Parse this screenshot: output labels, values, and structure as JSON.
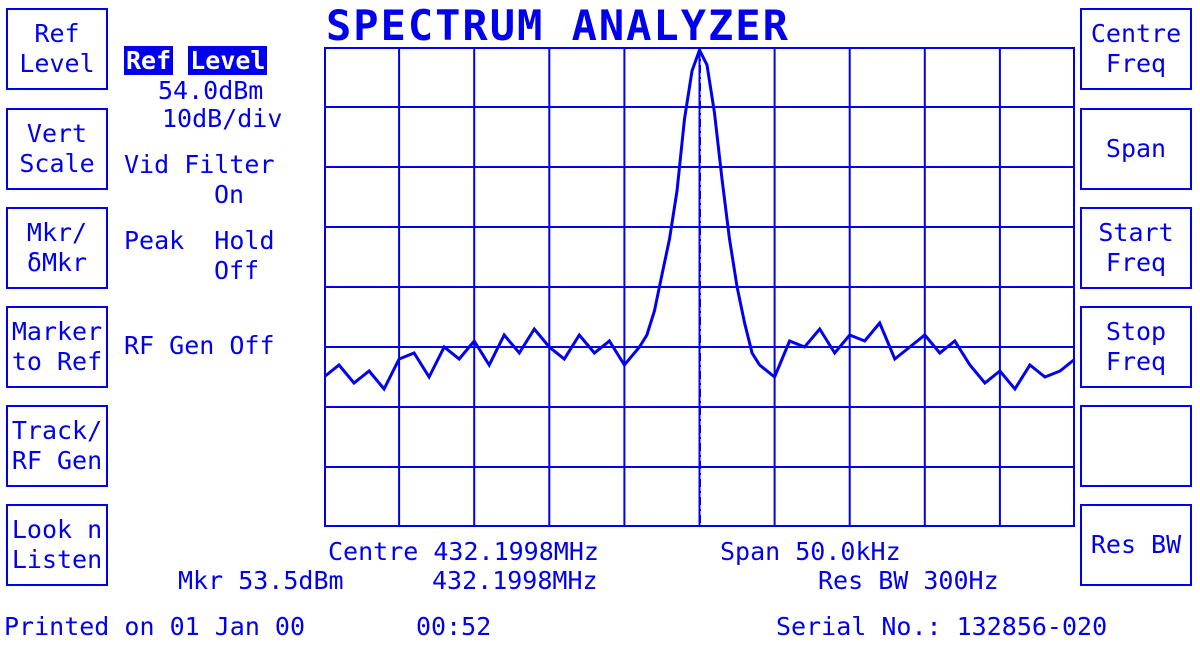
{
  "title": "SPECTRUM ANALYZER",
  "left_softkeys": [
    {
      "line1": "Ref",
      "line2": "Level"
    },
    {
      "line1": "Vert",
      "line2": "Scale"
    },
    {
      "line1": "Mkr/",
      "line2": "δMkr"
    },
    {
      "line1": "Marker",
      "line2": "to Ref"
    },
    {
      "line1": "Track/",
      "line2": "RF Gen"
    },
    {
      "line1": "Look n",
      "line2": "Listen"
    }
  ],
  "right_softkeys": [
    {
      "line1": "Centre",
      "line2": "Freq"
    },
    {
      "line1": "Span",
      "line2": ""
    },
    {
      "line1": "Start",
      "line2": "Freq"
    },
    {
      "line1": "Stop",
      "line2": "Freq"
    },
    {
      "line1": "",
      "line2": ""
    },
    {
      "line1": "Res BW",
      "line2": ""
    }
  ],
  "status": {
    "ref_label_1": "Ref",
    "ref_label_2": "Level",
    "ref_value": "54.0dBm",
    "vert_scale": "10dB/div",
    "vid_filter_label": "Vid Filter",
    "vid_filter_value": "On",
    "peak_hold_label": "Peak  Hold",
    "peak_hold_value": "Off",
    "rf_gen": "RF Gen Off"
  },
  "bottom": {
    "centre": "Centre 432.1998MHz",
    "span": "Span 50.0kHz",
    "marker_level": "Mkr 53.5dBm",
    "marker_freq": "432.1998MHz",
    "res_bw": "Res BW 300Hz"
  },
  "footer": {
    "printed": "Printed on 01 Jan 00",
    "time": "00:52",
    "serial": "Serial No.: 132856-020"
  },
  "colors": {
    "accent": "#0000ee",
    "background": "#ffffff"
  },
  "chart_data": {
    "type": "line",
    "title": "",
    "xlabel": "",
    "ylabel": "",
    "x_centre_mhz": 432.1998,
    "x_span_khz": 50.0,
    "ref_level_dbm": 54.0,
    "db_per_div": 10,
    "grid": {
      "x_divisions": 10,
      "y_divisions": 8
    },
    "marker": {
      "freq_mhz": 432.1998,
      "level_dbm": 53.5
    },
    "series": [
      {
        "x_offset_khz": [
          -25,
          -24,
          -23,
          -22,
          -21,
          -20,
          -19,
          -18,
          -17,
          -16,
          -15,
          -14,
          -13,
          -12,
          -11,
          -10,
          -9,
          -8,
          -7,
          -6,
          -5,
          -4,
          -3.5,
          -3,
          -2.5,
          -2,
          -1.5,
          -1,
          -0.5,
          0,
          0.5,
          1,
          1.5,
          2,
          2.5,
          3,
          3.5,
          4,
          5,
          6,
          7,
          8,
          9,
          10,
          11,
          12,
          13,
          14,
          15,
          16,
          17,
          18,
          19,
          20,
          21,
          22,
          23,
          24,
          25
        ],
        "level_dbm": [
          -1,
          1,
          -2,
          0,
          -3,
          2,
          3,
          -1,
          4,
          2,
          5,
          1,
          6,
          3,
          7,
          4,
          2,
          6,
          3,
          5,
          1,
          4,
          6,
          10,
          16,
          22,
          30,
          42,
          50,
          53.5,
          51,
          43,
          32,
          22,
          14,
          8,
          3,
          1,
          -1,
          5,
          4,
          7,
          3,
          6,
          5,
          8,
          2,
          4,
          6,
          3,
          5,
          1,
          -2,
          0,
          -3,
          1,
          -1,
          0,
          2
        ]
      }
    ]
  }
}
